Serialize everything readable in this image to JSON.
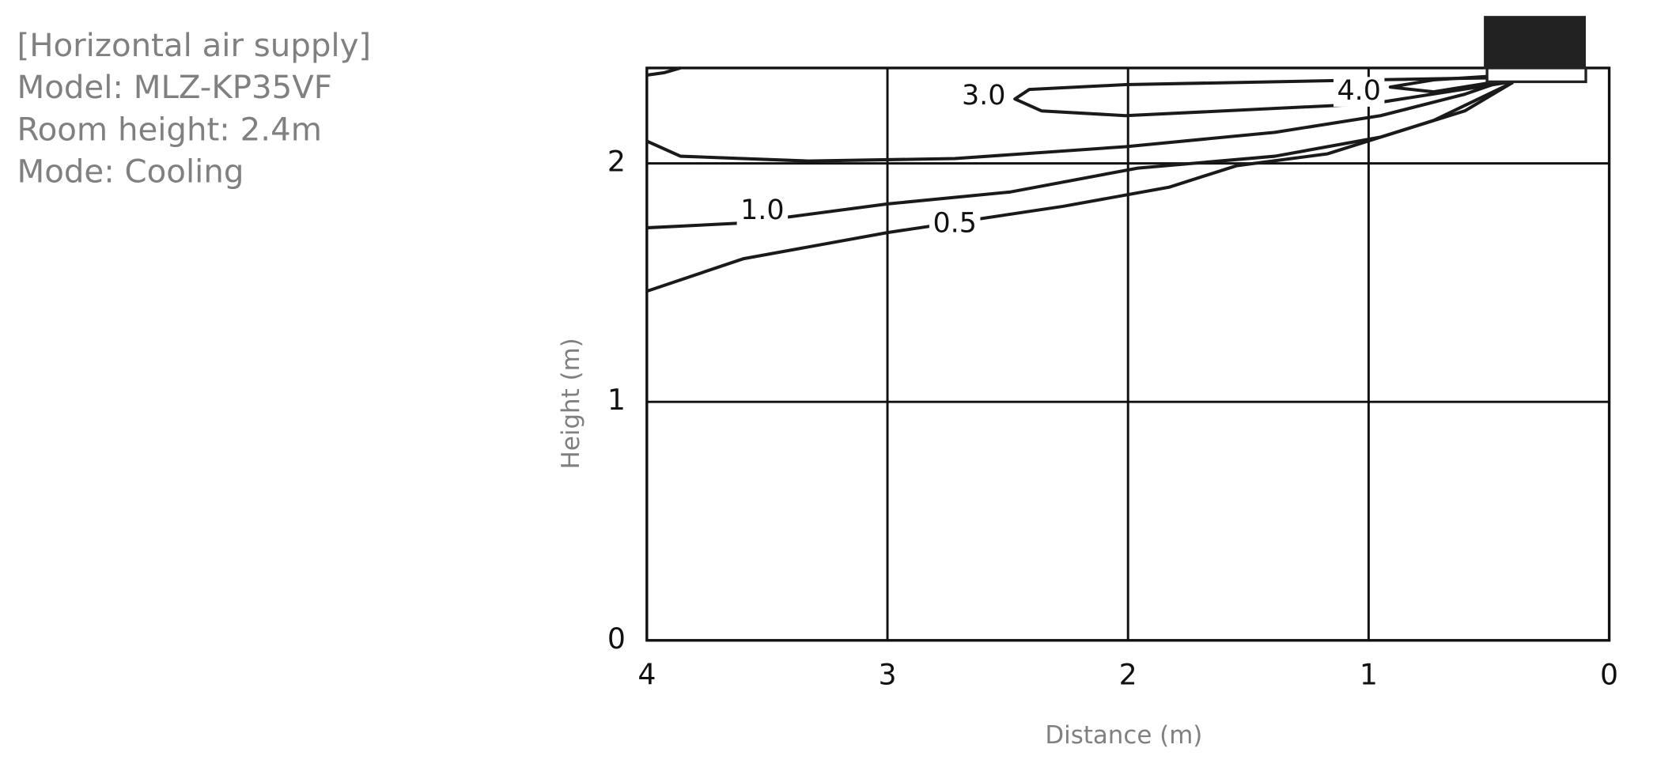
{
  "chart_data": {
    "type": "contour",
    "annotations": [
      "[Horizontal air supply]",
      "Model: MLZ-KP35VF",
      "Room height: 2.4m",
      "Mode: Cooling"
    ],
    "x_label": "Distance (m)",
    "y_label": "Height (m)",
    "xlim": [
      4,
      0
    ],
    "xticks": [
      4,
      3,
      2,
      1,
      0
    ],
    "ylim": [
      0,
      2.4
    ],
    "yticks": [
      0,
      1,
      2
    ],
    "grid": true,
    "contours": [
      {
        "level": 0.5,
        "label": "0.5",
        "x": [
          4.0,
          3.6,
          3.0,
          2.27,
          1.83,
          1.55,
          1.17,
          0.73,
          0.42
        ],
        "y": [
          1.464,
          1.6,
          1.71,
          1.82,
          1.9,
          1.99,
          2.04,
          2.18,
          2.33
        ]
      },
      {
        "level": 1,
        "label": "1.0",
        "x": [
          4.0,
          3.6,
          3.0,
          2.49,
          1.96,
          1.39,
          0.95,
          0.6,
          0.4
        ],
        "y": [
          1.73,
          1.75,
          1.83,
          1.88,
          1.98,
          2.03,
          2.11,
          2.22,
          2.34
        ]
      },
      {
        "x": [
          4.0,
          3.86,
          3.33,
          2.72,
          2.01,
          1.39,
          0.95,
          0.6,
          0.4
        ],
        "y": [
          2.093,
          2.03,
          2.01,
          2.02,
          2.07,
          2.13,
          2.2,
          2.29,
          2.36
        ]
      },
      {
        "x": [
          4.0,
          3.93,
          3.86
        ],
        "y": [
          2.37,
          2.38,
          2.4
        ]
      },
      {
        "level": 3,
        "label": "3.0",
        "closed": true,
        "x": [
          0.42,
          0.99,
          2.01,
          2.41,
          2.47,
          2.36,
          2.01,
          0.99,
          0.42
        ],
        "y": [
          2.36,
          2.35,
          2.33,
          2.31,
          2.27,
          2.22,
          2.2,
          2.25,
          2.34
        ]
      },
      {
        "level": 4,
        "label": "4.0",
        "closed": true,
        "x": [
          0.42,
          0.73,
          0.91,
          0.73,
          0.42
        ],
        "y": [
          2.37,
          2.35,
          2.32,
          2.3,
          2.35
        ]
      }
    ]
  }
}
